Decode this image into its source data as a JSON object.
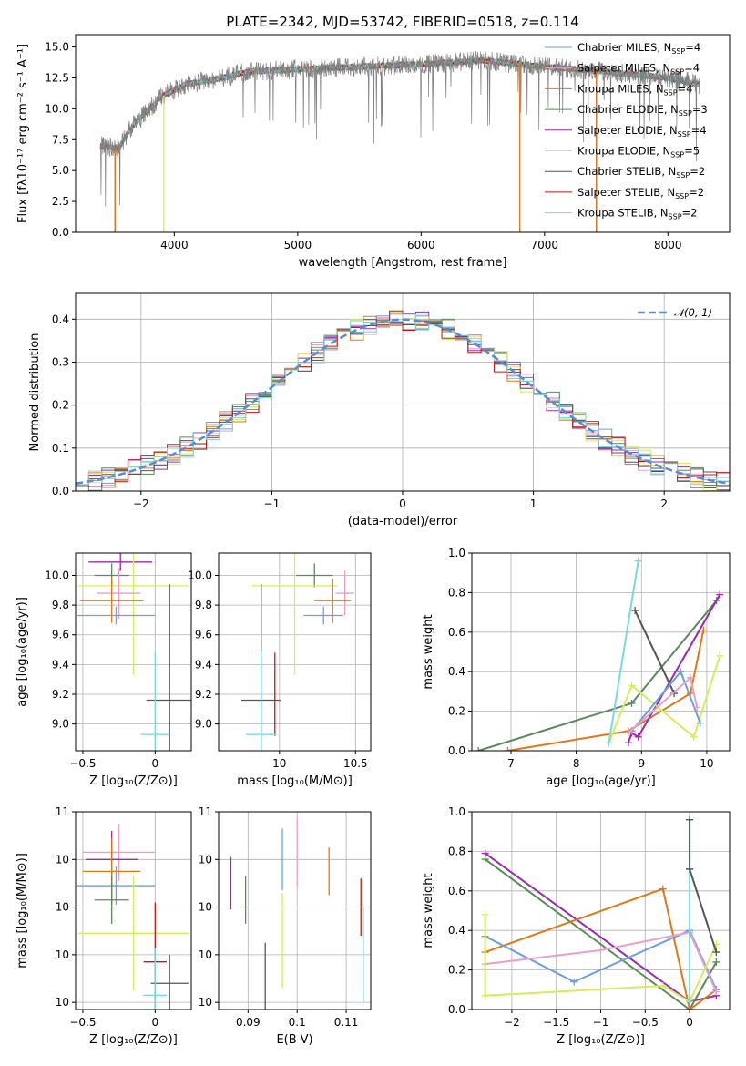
{
  "title": "PLATE=2342, MJD=53742, FIBERID=0518, z=0.114",
  "colors": {
    "Chabrier MILES": "#6aa0e0",
    "Salpeter MILES": "#e8a0c8",
    "Kroupa MILES": "#e07818",
    "Chabrier ELODIE": "#5a8a5a",
    "Salpeter ELODIE": "#9a2ab0",
    "Kroupa ELODIE": "#d8ec5a",
    "Chabrier STELIB": "#555555",
    "Salpeter STELIB": "#c01818",
    "Kroupa STELIB": "#7adada",
    "normal": "#5a8ad8"
  },
  "legend_spectrum": [
    {
      "model": "Chabrier MILES",
      "label": "Chabrier MILES, N",
      "sub": "SSP",
      "n": "=4"
    },
    {
      "model": "Salpeter MILES",
      "label": "Salpeter MILES, N",
      "sub": "SSP",
      "n": "=4"
    },
    {
      "model": "Kroupa MILES",
      "label": "Kroupa MILES, N",
      "sub": "SSP",
      "n": "=4"
    },
    {
      "model": "Chabrier ELODIE",
      "label": "Chabrier ELODIE, N",
      "sub": "SSP",
      "n": "=3"
    },
    {
      "model": "Salpeter ELODIE",
      "label": "Salpeter ELODIE, N",
      "sub": "SSP",
      "n": "=4"
    },
    {
      "model": "Kroupa ELODIE",
      "label": "Kroupa ELODIE, N",
      "sub": "SSP",
      "n": "=5"
    },
    {
      "model": "Chabrier STELIB",
      "label": "Chabrier STELIB, N",
      "sub": "SSP",
      "n": "=2"
    },
    {
      "model": "Salpeter STELIB",
      "label": "Salpeter STELIB, N",
      "sub": "SSP",
      "n": "=2"
    },
    {
      "model": "Kroupa STELIB",
      "label": "Kroupa STELIB, N",
      "sub": "SSP",
      "n": "=2"
    }
  ],
  "chart_data": [
    {
      "id": "spectrum",
      "type": "line",
      "xlabel": "wavelength [Angstrom, rest frame]",
      "ylabel": "Flux [fλ10⁻¹⁷ erg cm⁻² s⁻¹ A⁻¹]",
      "xlim": [
        3200,
        8500
      ],
      "ylim": [
        0,
        16
      ],
      "xticks": [
        4000,
        5000,
        6000,
        7000,
        8000
      ],
      "yticks": [
        0.0,
        2.5,
        5.0,
        7.5,
        10.0,
        12.5,
        15.0
      ],
      "continuum": {
        "x": [
          3400,
          3550,
          3650,
          3750,
          3900,
          4100,
          4300,
          4600,
          5000,
          5500,
          6000,
          6500,
          7000,
          7500,
          8000,
          8250
        ],
        "y": [
          7.0,
          6.8,
          8.5,
          9.5,
          11.0,
          12.0,
          12.3,
          13.0,
          13.2,
          13.4,
          13.6,
          13.9,
          13.4,
          13.0,
          12.5,
          12.0
        ]
      },
      "x_range": [
        3400,
        8260
      ],
      "model_series": [
        "Chabrier MILES",
        "Salpeter MILES",
        "Kroupa MILES",
        "Chabrier ELODIE",
        "Salpeter ELODIE",
        "Kroupa ELODIE",
        "Chabrier STELIB",
        "Salpeter STELIB",
        "Kroupa STELIB"
      ],
      "data_series_color": "#808080",
      "drops": [
        {
          "model": "Salpeter STELIB",
          "x": 3520
        },
        {
          "model": "Kroupa MILES",
          "x": 3520
        },
        {
          "model": "Kroupa ELODIE",
          "x": 3915
        },
        {
          "model": "Kroupa MILES",
          "x": 6800
        },
        {
          "model": "Salpeter STELIB",
          "x": 7420
        },
        {
          "model": "Kroupa MILES",
          "x": 7420
        }
      ]
    },
    {
      "id": "residuals",
      "type": "histogram",
      "xlabel": "(data-model)/error",
      "ylabel": "Normed distribution",
      "xlim": [
        -2.5,
        2.5
      ],
      "ylim": [
        0,
        0.46
      ],
      "xticks": [
        -2,
        -1,
        0,
        1,
        2
      ],
      "yticks": [
        0.0,
        0.1,
        0.2,
        0.3,
        0.4
      ],
      "bin_width": 0.1,
      "grid": true,
      "normal_label": "𝒩(0, 1)",
      "legend": "top-right"
    },
    {
      "id": "age-Z",
      "type": "errorbar",
      "xlabel": "Z [log₁₀(Z/Z⊙)]",
      "ylabel": "age  [log₁₀(age/yr)]",
      "xlim": [
        -0.55,
        0.25
      ],
      "ylim": [
        8.82,
        10.15
      ],
      "xticks": [
        -0.5,
        0.0
      ],
      "yticks": [
        9.0,
        9.2,
        9.4,
        9.6,
        9.8,
        10.0
      ],
      "points": [
        {
          "model": "Salpeter ELODIE",
          "x": -0.24,
          "y": 10.09,
          "xerr": 0.22,
          "yerr": 0.06
        },
        {
          "model": "Chabrier ELODIE",
          "x": -0.3,
          "y": 10.0,
          "xerr": 0.12,
          "yerr": 0.08
        },
        {
          "model": "Kroupa ELODIE",
          "x": -0.15,
          "y": 9.93,
          "xerr": 0.38,
          "yerr": 0.6
        },
        {
          "model": "Salpeter MILES",
          "x": -0.25,
          "y": 9.88,
          "xerr": 0.15,
          "yerr": 0.17
        },
        {
          "model": "Kroupa MILES",
          "x": -0.3,
          "y": 9.83,
          "xerr": 0.22,
          "yerr": 0.15
        },
        {
          "model": "Chabrier MILES",
          "x": -0.27,
          "y": 9.73,
          "xerr": 0.27,
          "yerr": 0.06
        },
        {
          "model": "Chabrier STELIB",
          "x": 0.1,
          "y": 9.16,
          "xerr": 0.16,
          "yerr": 0.78
        },
        {
          "model": "Kroupa STELIB",
          "x": 0.0,
          "y": 8.93,
          "xerr": 0.1,
          "yerr": 0.56
        }
      ]
    },
    {
      "id": "age-mass",
      "type": "errorbar",
      "xlabel": "mass [log₁₀(M/M⊙)]",
      "xlim": [
        9.6,
        10.6
      ],
      "ylim": [
        8.82,
        10.15
      ],
      "xticks": [
        10.0,
        10.5
      ],
      "yticks": [
        9.0,
        9.2,
        9.4,
        9.6,
        9.8,
        10.0
      ],
      "points": [
        {
          "model": "Chabrier ELODIE",
          "x": 10.23,
          "y": 10.0,
          "xerr": 0.12,
          "yerr": 0.08
        },
        {
          "model": "Kroupa ELODIE",
          "x": 10.1,
          "y": 9.93,
          "xerr": 0.28,
          "yerr": 0.6
        },
        {
          "model": "Salpeter MILES",
          "x": 10.43,
          "y": 9.88,
          "xerr": 0.06,
          "yerr": 0.15
        },
        {
          "model": "Kroupa MILES",
          "x": 10.35,
          "y": 9.83,
          "xerr": 0.12,
          "yerr": 0.15
        },
        {
          "model": "Chabrier MILES",
          "x": 10.29,
          "y": 9.73,
          "xerr": 0.13,
          "yerr": 0.06
        },
        {
          "model": "Chabrier STELIB",
          "x": 9.88,
          "y": 9.16,
          "xerr": 0.13,
          "yerr": 0.78
        },
        {
          "model": "Salpeter STELIB",
          "x": 9.97,
          "y": 9.2,
          "xerr": 0.0,
          "yerr": 0.28
        },
        {
          "model": "Kroupa STELIB",
          "x": 9.88,
          "y": 8.93,
          "xerr": 0.1,
          "yerr": 0.56
        }
      ]
    },
    {
      "id": "weight-age",
      "type": "line",
      "xlabel": "age  [log₁₀(age/yr)]",
      "ylabel": "mass weight",
      "xlim": [
        6.4,
        10.35
      ],
      "ylim": [
        0,
        1.0
      ],
      "xticks": [
        7,
        8,
        9,
        10
      ],
      "yticks": [
        0.0,
        0.2,
        0.4,
        0.6,
        0.8,
        1.0
      ],
      "series": [
        {
          "model": "Chabrier ELODIE",
          "x": [
            6.5,
            8.85,
            10.15
          ],
          "y": [
            0.0,
            0.24,
            0.76
          ]
        },
        {
          "model": "Kroupa MILES",
          "x": [
            6.95,
            8.8,
            9.75,
            9.95
          ],
          "y": [
            0.0,
            0.1,
            0.29,
            0.61
          ]
        },
        {
          "model": "Salpeter ELODIE",
          "x": [
            8.8,
            8.85,
            8.95,
            10.2
          ],
          "y": [
            0.04,
            0.09,
            0.07,
            0.79
          ]
        },
        {
          "model": "Kroupa ELODIE",
          "x": [
            8.5,
            8.85,
            9.8,
            10.2
          ],
          "y": [
            0.04,
            0.33,
            0.07,
            0.48
          ]
        },
        {
          "model": "Chabrier STELIB",
          "x": [
            8.9,
            9.5
          ],
          "y": [
            0.71,
            0.29
          ]
        },
        {
          "model": "Chabrier MILES",
          "x": [
            8.85,
            9.6,
            9.9
          ],
          "y": [
            0.1,
            0.4,
            0.14
          ]
        },
        {
          "model": "Salpeter MILES",
          "x": [
            8.8,
            9.75,
            9.85
          ],
          "y": [
            0.09,
            0.37,
            0.22
          ]
        },
        {
          "model": "Kroupa STELIB",
          "x": [
            8.5,
            8.95
          ],
          "y": [
            0.04,
            0.96
          ]
        }
      ]
    },
    {
      "id": "mass-Z",
      "type": "errorbar",
      "xlabel": "Z [log₁₀(Z/Z⊙)]",
      "ylabel": "mass [log₁₀(M/M⊙)]",
      "xlim": [
        -0.55,
        0.25
      ],
      "ylim": [
        9.77,
        10.6
      ],
      "xticks": [
        -0.5,
        0.0
      ],
      "yticks": [
        9.8,
        10.0,
        10.2,
        10.4,
        10.6
      ],
      "points": [
        {
          "model": "Salpeter MILES",
          "x": -0.25,
          "y": 10.43,
          "xerr": 0.25,
          "yerr": 0.12
        },
        {
          "model": "Salpeter ELODIE",
          "x": -0.3,
          "y": 10.4,
          "xerr": 0.18,
          "yerr": 0.12
        },
        {
          "model": "Kroupa MILES",
          "x": -0.3,
          "y": 10.35,
          "xerr": 0.2,
          "yerr": 0.14
        },
        {
          "model": "Chabrier MILES",
          "x": -0.27,
          "y": 10.29,
          "xerr": 0.27,
          "yerr": 0.08
        },
        {
          "model": "Chabrier ELODIE",
          "x": -0.3,
          "y": 10.23,
          "xerr": 0.12,
          "yerr": 0.1
        },
        {
          "model": "Kroupa ELODIE",
          "x": -0.15,
          "y": 10.09,
          "xerr": 0.38,
          "yerr": 0.24
        },
        {
          "model": "Salpeter STELIB",
          "x": 0.0,
          "y": 9.97,
          "xerr": 0.08,
          "yerr": 0.25
        },
        {
          "model": "Chabrier STELIB",
          "x": 0.1,
          "y": 9.88,
          "xerr": 0.13,
          "yerr": 0.12
        },
        {
          "model": "Kroupa STELIB",
          "x": 0.0,
          "y": 9.83,
          "xerr": 0.08,
          "yerr": 0.2
        }
      ]
    },
    {
      "id": "mass-EBV",
      "type": "errorbar",
      "xlabel": "E(B-V)",
      "xlim": [
        0.084,
        0.115
      ],
      "ylim": [
        9.77,
        10.6
      ],
      "xticks": [
        0.09,
        0.1,
        0.11
      ],
      "yticks": [
        9.8,
        10.0,
        10.2,
        10.4,
        10.6
      ],
      "points": [
        {
          "model": "Salpeter ELODIE",
          "x": 0.0865,
          "y": 10.3,
          "xerr": 0.0,
          "yerr": 0.11
        },
        {
          "model": "Chabrier ELODIE",
          "x": 0.0895,
          "y": 10.23,
          "xerr": 0.0,
          "yerr": 0.1
        },
        {
          "model": "Chabrier STELIB",
          "x": 0.0935,
          "y": 9.88,
          "xerr": 0.0,
          "yerr": 0.17
        },
        {
          "model": "Chabrier MILES",
          "x": 0.097,
          "y": 10.4,
          "xerr": 0.0,
          "yerr": 0.13
        },
        {
          "model": "Kroupa ELODIE",
          "x": 0.097,
          "y": 10.06,
          "xerr": 0.0,
          "yerr": 0.2
        },
        {
          "model": "Salpeter MILES",
          "x": 0.1,
          "y": 10.43,
          "xerr": 0.0,
          "yerr": 0.14
        },
        {
          "model": "Kroupa MILES",
          "x": 0.1065,
          "y": 10.35,
          "xerr": 0.0,
          "yerr": 0.1
        },
        {
          "model": "Salpeter STELIB",
          "x": 0.113,
          "y": 10.2,
          "xerr": 0.0,
          "yerr": 0.12
        },
        {
          "model": "Kroupa STELIB",
          "x": 0.1135,
          "y": 10.0,
          "xerr": 0.0,
          "yerr": 0.2
        }
      ]
    },
    {
      "id": "weight-Z",
      "type": "line",
      "xlabel": "Z [log₁₀(Z/Z⊙)]",
      "ylabel": "mass weight",
      "xlim": [
        -2.45,
        0.45
      ],
      "ylim": [
        0,
        1.0
      ],
      "xticks": [
        -2.0,
        -1.5,
        -1.0,
        -0.5,
        0.0
      ],
      "yticks": [
        0.0,
        0.2,
        0.4,
        0.6,
        0.8,
        1.0
      ],
      "series": [
        {
          "model": "Salpeter ELODIE",
          "x": [
            -2.3,
            0.0,
            0.3
          ],
          "y": [
            0.79,
            0.04,
            0.07
          ]
        },
        {
          "model": "Chabrier ELODIE",
          "x": [
            -2.3,
            0.0,
            0.3
          ],
          "y": [
            0.76,
            0.0,
            0.24
          ]
        },
        {
          "model": "Kroupa MILES",
          "x": [
            -2.3,
            -0.3,
            0.0,
            0.3
          ],
          "y": [
            0.29,
            0.61,
            0.0,
            0.1
          ]
        },
        {
          "model": "Chabrier MILES",
          "x": [
            -2.3,
            -1.3,
            0.0,
            0.3
          ],
          "y": [
            0.37,
            0.14,
            0.4,
            0.1
          ]
        },
        {
          "model": "Salpeter MILES",
          "x": [
            -2.3,
            -1.0,
            0.0,
            0.3
          ],
          "y": [
            0.23,
            0.3,
            0.39,
            0.09
          ]
        },
        {
          "model": "Kroupa ELODIE",
          "x": [
            -2.3,
            -2.3,
            -0.3,
            0.0,
            0.3
          ],
          "y": [
            0.48,
            0.07,
            0.12,
            0.04,
            0.33
          ]
        },
        {
          "model": "Chabrier STELIB",
          "x": [
            0.0,
            0.3
          ],
          "y": [
            0.71,
            0.29
          ]
        },
        {
          "model": "Kroupa STELIB",
          "x": [
            0.0,
            0.0
          ],
          "y": [
            0.04,
            0.96
          ]
        },
        {
          "model": "Chabrier STELIB",
          "x": [
            0.0,
            0.0
          ],
          "y": [
            0.71,
            0.96
          ]
        }
      ]
    }
  ]
}
